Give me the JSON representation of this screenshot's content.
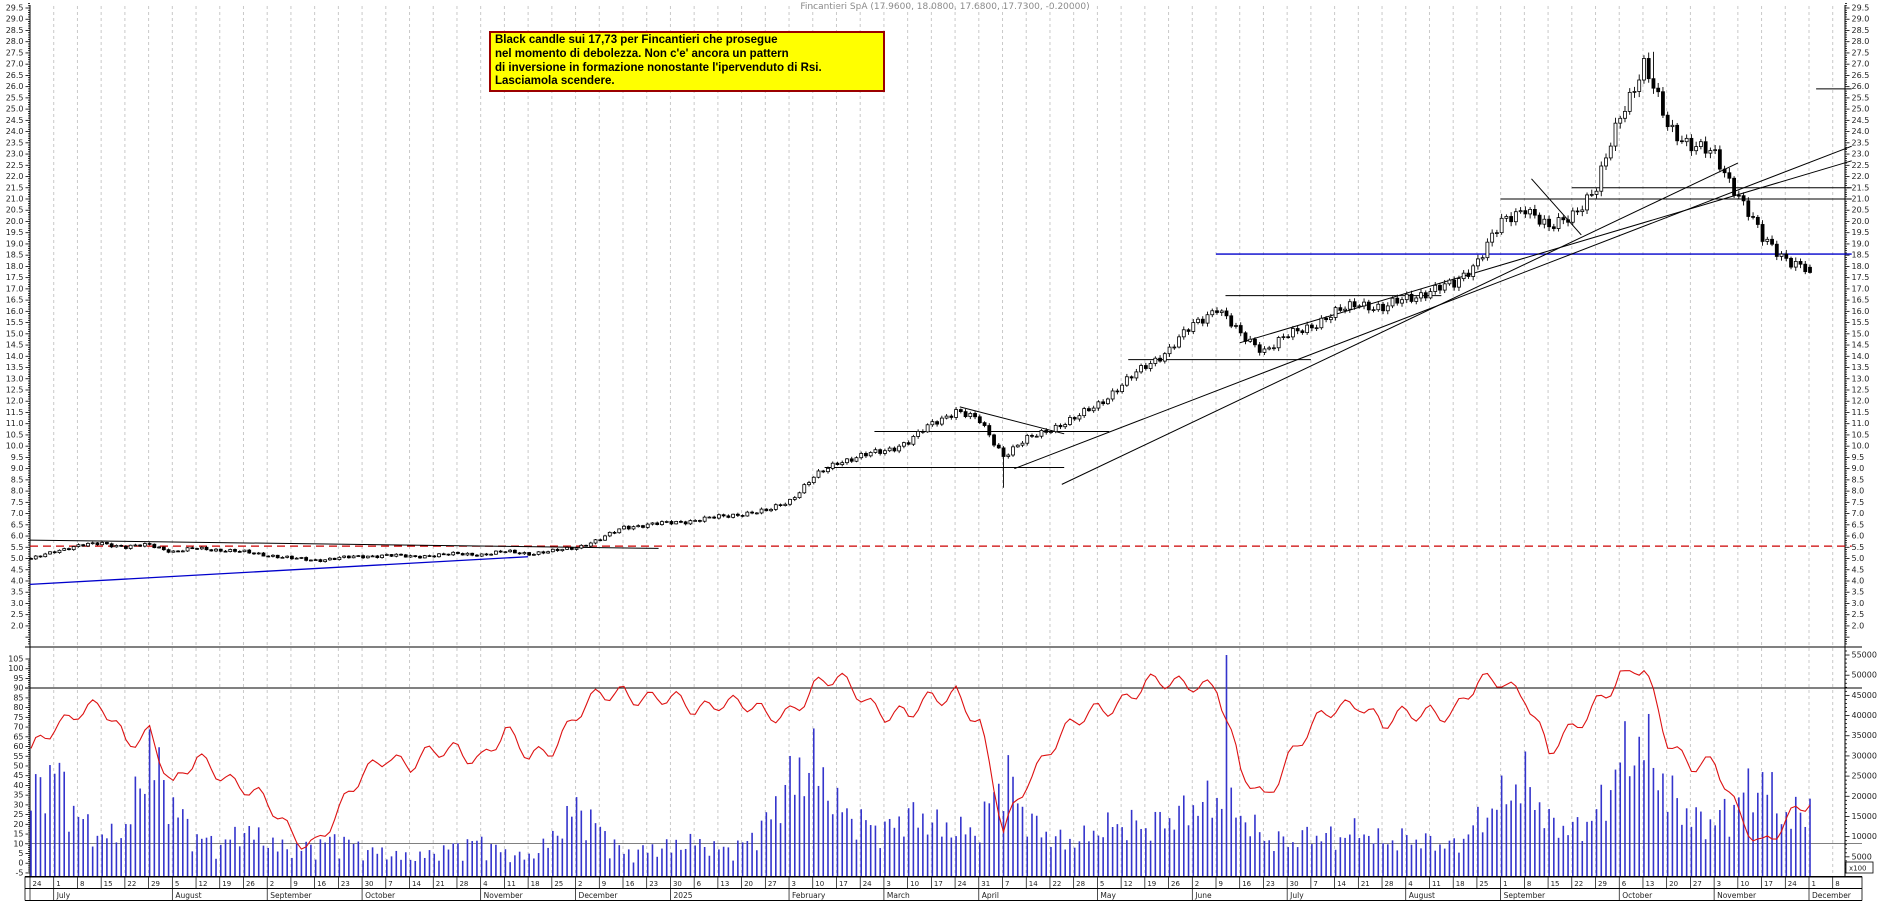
{
  "title": "Fincantieri SpA (17.9600, 18.0800, 17.6800, 17.7300, -0.20000)",
  "annotation": {
    "text": "Black candle sui 17,73 per Fincantieri che prosegue\nnel momento di debolezza. Non c'e' ancora un pattern\ndi inversione in formazione nonostante l'ipervenduto di Rsi.\nLasciamola scendere.",
    "bg_color": "#ffff00",
    "border_color": "#9b0000"
  },
  "chart_data": {
    "type": "candlestick",
    "symbol": "Fincantieri SpA",
    "timeframe": "daily",
    "last_ohlc": {
      "open": 17.96,
      "high": 18.08,
      "low": 17.68,
      "close": 17.73,
      "change": -0.2
    },
    "price_axis": {
      "min": 2.0,
      "max": 29.5,
      "step": 0.5,
      "minor_step": 0.1,
      "sides": "both"
    },
    "rsi_axis": {
      "min": -5,
      "max": 105,
      "step": 5,
      "side": "left"
    },
    "volume_axis": {
      "min": 5000,
      "max": 55000,
      "step": 5000,
      "unit": "x100",
      "side": "right"
    },
    "x_ticks": [
      "24",
      "1",
      "8",
      "15",
      "22",
      "29",
      "5",
      "12",
      "19",
      "26",
      "2",
      "9",
      "16",
      "23",
      "30",
      "7",
      "14",
      "21",
      "28",
      "4",
      "11",
      "18",
      "25",
      "2",
      "9",
      "16",
      "23",
      "30",
      "6",
      "13",
      "20",
      "27",
      "3",
      "10",
      "17",
      "24",
      "3",
      "10",
      "17",
      "24",
      "31",
      "7",
      "14",
      "22",
      "28",
      "5",
      "12",
      "19",
      "26",
      "2",
      "9",
      "16",
      "23",
      "30",
      "7",
      "14",
      "21",
      "28",
      "4",
      "11",
      "18",
      "25",
      "1",
      "8",
      "15",
      "22",
      "29",
      "6",
      "13",
      "20",
      "27",
      "3",
      "10",
      "17",
      "24",
      "1",
      "8"
    ],
    "months": [
      {
        "label": "",
        "week": 0
      },
      {
        "label": "July",
        "week": 1
      },
      {
        "label": "August",
        "week": 6
      },
      {
        "label": "September",
        "week": 10
      },
      {
        "label": "October",
        "week": 14
      },
      {
        "label": "November",
        "week": 19
      },
      {
        "label": "December",
        "week": 23
      },
      {
        "label": "2025",
        "week": 27
      },
      {
        "label": "February",
        "week": 32
      },
      {
        "label": "March",
        "week": 36
      },
      {
        "label": "April",
        "week": 40
      },
      {
        "label": "May",
        "week": 45
      },
      {
        "label": "June",
        "week": 49
      },
      {
        "label": "July",
        "week": 53
      },
      {
        "label": "August",
        "week": 58
      },
      {
        "label": "September",
        "week": 62
      },
      {
        "label": "October",
        "week": 67
      },
      {
        "label": "November",
        "week": 71
      },
      {
        "label": "December",
        "week": 75
      }
    ],
    "days_per_week": 5,
    "last_day": 375,
    "weekly_close": [
      4.95,
      5.35,
      5.55,
      5.7,
      5.5,
      5.62,
      5.3,
      5.45,
      5.38,
      5.28,
      5.15,
      5.0,
      4.93,
      5.02,
      5.1,
      5.15,
      5.08,
      5.15,
      5.2,
      5.18,
      5.3,
      5.22,
      5.32,
      5.5,
      5.85,
      6.4,
      6.5,
      6.6,
      6.7,
      6.85,
      7.0,
      7.1,
      7.6,
      8.6,
      9.3,
      9.55,
      9.8,
      10.2,
      11.0,
      11.6,
      11.1,
      9.6,
      10.3,
      10.8,
      11.2,
      11.9,
      12.7,
      13.6,
      14.3,
      15.4,
      16.2,
      14.9,
      14.3,
      14.9,
      15.4,
      15.9,
      16.4,
      16.1,
      16.6,
      16.9,
      17.2,
      18.3,
      19.9,
      20.7,
      19.6,
      20.4,
      21.4,
      24.8,
      26.9,
      24.3,
      23.4,
      22.9,
      21.2,
      19.2,
      18.4,
      17.73,
      17.6
    ],
    "weekly_rsi": [
      55,
      72,
      80,
      78,
      62,
      70,
      38,
      52,
      48,
      40,
      28,
      15,
      12,
      25,
      45,
      58,
      50,
      55,
      60,
      55,
      65,
      55,
      62,
      75,
      85,
      90,
      85,
      82,
      80,
      85,
      80,
      75,
      80,
      90,
      93,
      88,
      78,
      74,
      85,
      90,
      70,
      15,
      45,
      60,
      70,
      80,
      85,
      90,
      92,
      95,
      90,
      45,
      35,
      55,
      68,
      80,
      85,
      70,
      75,
      80,
      78,
      90,
      95,
      88,
      55,
      68,
      85,
      96,
      98,
      65,
      52,
      48,
      25,
      12,
      20,
      30,
      35
    ],
    "weekly_volume_x100": [
      20000,
      28000,
      15000,
      10000,
      12000,
      33000,
      18000,
      10000,
      8000,
      12000,
      9000,
      7000,
      8000,
      10000,
      7000,
      6000,
      5000,
      6000,
      8000,
      9000,
      6000,
      5000,
      10000,
      18000,
      12000,
      6000,
      7000,
      8000,
      9000,
      7000,
      8000,
      14000,
      25000,
      30000,
      18000,
      14000,
      12000,
      16000,
      14000,
      12000,
      12000,
      28000,
      15000,
      10000,
      9000,
      12000,
      14000,
      13000,
      15000,
      18000,
      20000,
      16000,
      10000,
      9000,
      11000,
      10000,
      12000,
      9000,
      10000,
      9000,
      8000,
      14000,
      20000,
      25000,
      14000,
      12000,
      16000,
      30000,
      35000,
      22000,
      15000,
      14000,
      20000,
      25000,
      15000,
      18000,
      10000
    ],
    "spikes": {
      "low": {
        "day": 205,
        "price": 8.15
      },
      "high": {
        "day": 342,
        "price": 27.55
      },
      "volume": {
        "day": 252,
        "value": 55000
      }
    },
    "levels": [
      {
        "p": 5.55,
        "w1": 0,
        "w2": 76.8,
        "color": "#cc0000",
        "dash": "8,5",
        "width": 1.3,
        "name": "red-dashed-level"
      },
      {
        "p": 18.55,
        "w1": 50,
        "w2": 76.8,
        "color": "#0000cc",
        "width": 1.3,
        "name": "blue-support-18.55"
      },
      {
        "p": 21.0,
        "w1": 62,
        "w2": 76.8,
        "color": "#000000",
        "width": 1,
        "name": "level-21.00"
      },
      {
        "p": 21.5,
        "w1": 65,
        "w2": 76.8,
        "color": "#000000",
        "width": 1,
        "name": "level-21.50"
      },
      {
        "p": 9.05,
        "w1": 33.5,
        "w2": 43.6,
        "color": "#000000",
        "width": 1,
        "name": "level-9.05"
      },
      {
        "p": 10.65,
        "w1": 35.6,
        "w2": 45.5,
        "color": "#000000",
        "width": 1,
        "name": "level-10.65"
      },
      {
        "p": 13.85,
        "w1": 46.3,
        "w2": 54.0,
        "color": "#000000",
        "width": 1,
        "name": "level-13.85"
      },
      {
        "p": 16.7,
        "w1": 50.4,
        "w2": 59.5,
        "color": "#000000",
        "width": 1,
        "name": "level-16.70"
      },
      {
        "p": 25.9,
        "w1": 75.3,
        "w2": 76.8,
        "color": "#000000",
        "width": 1,
        "name": "level-25.90"
      }
    ],
    "trendlines": [
      {
        "w1": 0,
        "p1": 5.82,
        "w2": 26.5,
        "p2": 5.45,
        "color": "#000000",
        "width": 1,
        "name": "resistance-2024"
      },
      {
        "w1": 0,
        "p1": 3.85,
        "w2": 21,
        "p2": 5.08,
        "color": "#0000cc",
        "width": 1.3,
        "name": "blue-uptrend-2024"
      },
      {
        "w1": 39.2,
        "p1": 11.75,
        "w2": 43.6,
        "p2": 10.55,
        "color": "#000000",
        "width": 1,
        "name": "flag-descending"
      },
      {
        "w1": 63.3,
        "p1": 21.9,
        "w2": 65.4,
        "p2": 19.4,
        "color": "#000000",
        "width": 1,
        "name": "september-pennant"
      },
      {
        "w1": 41.5,
        "p1": 9.0,
        "w2": 76.8,
        "p2": 23.35,
        "color": "#000000",
        "width": 1,
        "name": "major-uptrend-A"
      },
      {
        "w1": 51,
        "p1": 14.6,
        "w2": 76.8,
        "p2": 22.7,
        "color": "#000000",
        "width": 1,
        "name": "major-uptrend-B"
      },
      {
        "w1": 43.5,
        "p1": 8.3,
        "w2": 72,
        "p2": 22.6,
        "color": "#000000",
        "width": 1,
        "name": "major-uptrend-C"
      }
    ],
    "rsi_guides": [
      90,
      10
    ],
    "colors": {
      "candle_up": "#ffffff",
      "candle_down": "#000000",
      "volume": "#3434cc",
      "rsi": "#dd1111",
      "grid": "#c9c9c9",
      "axis_text": "#222222"
    },
    "legend_position": "none",
    "grid": "vertical-weekly-dashed"
  }
}
